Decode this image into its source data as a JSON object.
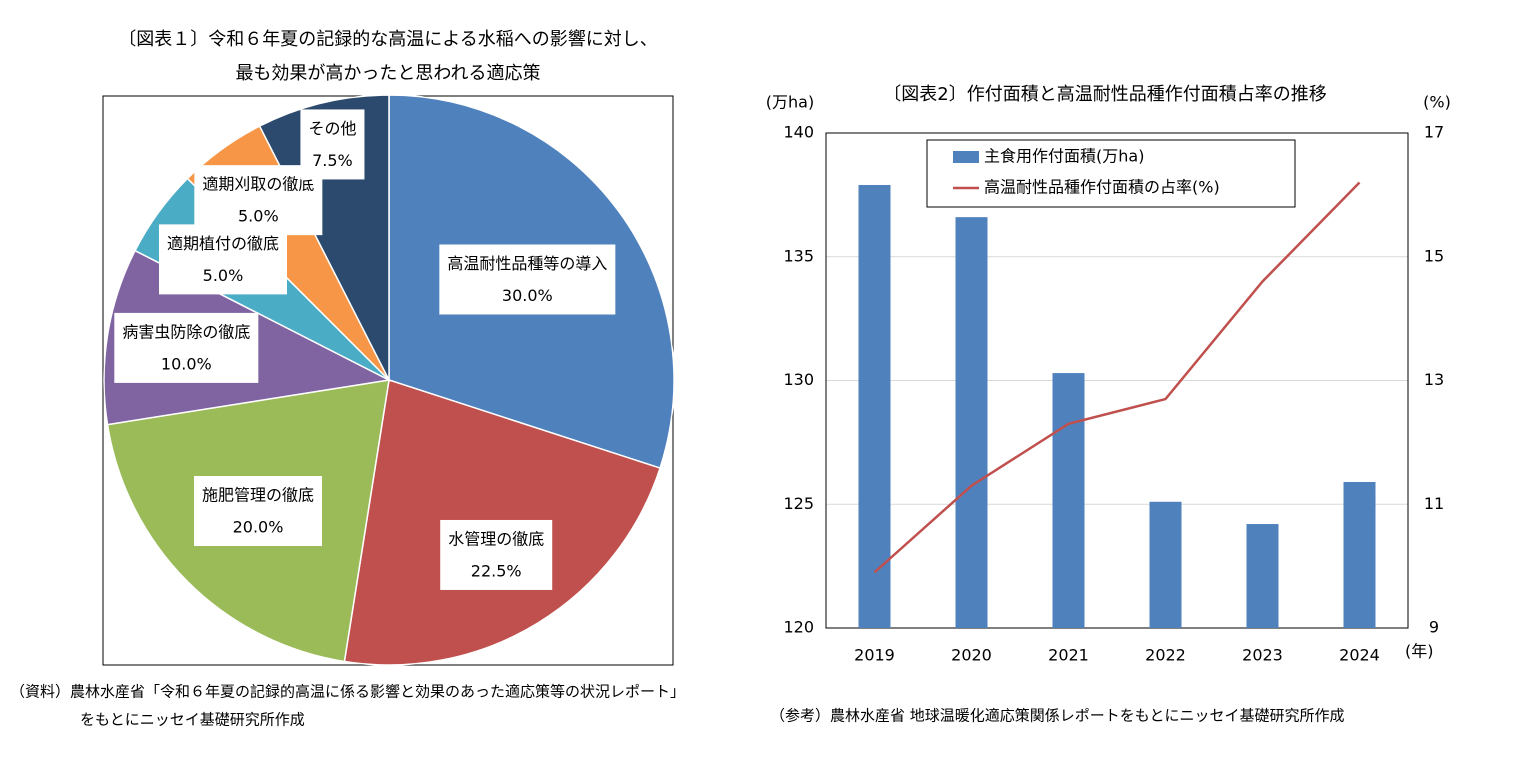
{
  "chart_data": [
    {
      "type": "pie",
      "title": [
        "〔図表１〕令和６年夏の記録的な高温による水稲への影響に対し、",
        "最も効果が高かったと思われる適応策"
      ],
      "categories": [
        "高温耐性品種等の導入",
        "水管理の徹底",
        "施肥管理の徹底",
        "病害虫防除の徹底",
        "適期植付の徹底",
        "適期刈取の徹底",
        "その他"
      ],
      "values": [
        30,
        22.5,
        20,
        10,
        5,
        5,
        7.5
      ],
      "value_labels": [
        "30.0%",
        "22.5%",
        "20.0%",
        "10.0%",
        "5.0%",
        "5.0%",
        "7.5%"
      ],
      "colors": [
        "#4f81bd",
        "#c0504d",
        "#9bbb59",
        "#8064a2",
        "#4bacc6",
        "#f79646",
        "#2c4a6e"
      ],
      "source": [
        "（資料）農林水産省「令和６年夏の記録的高温に係る影響と効果のあった適応策等の状況レポート」",
        "をもとにニッセイ基礎研究所作成"
      ]
    },
    {
      "type": "combo",
      "title": "〔図表2〕作付面積と高温耐性品種作付面積占率の推移",
      "y_label": "(万ha)",
      "y2_label": "(%)",
      "x_label": "(年)",
      "categories": [
        "2019",
        "2020",
        "2021",
        "2022",
        "2023",
        "2024"
      ],
      "series": [
        {
          "name": "主食用作付面積(万ha)",
          "type": "bar",
          "color": "#4f81bd",
          "values": [
            137.9,
            136.6,
            130.3,
            125.1,
            124.2,
            125.9
          ]
        },
        {
          "name": "高温耐性品種作付面積の占率(%)",
          "type": "line",
          "axis": "y2",
          "color": "#c0504d",
          "values": [
            9.9,
            11.3,
            12.3,
            12.7,
            14.6,
            16.2
          ]
        }
      ],
      "ylim": [
        120,
        140
      ],
      "yticks": [
        120,
        125,
        130,
        135,
        140
      ],
      "y2lim": [
        9,
        17
      ],
      "y2ticks": [
        9,
        11,
        13,
        15,
        17
      ],
      "grid": true,
      "legend": "top",
      "source": "（参考）農林水産省 地球温暖化適応策関係レポートをもとにニッセイ基礎研究所作成"
    }
  ]
}
